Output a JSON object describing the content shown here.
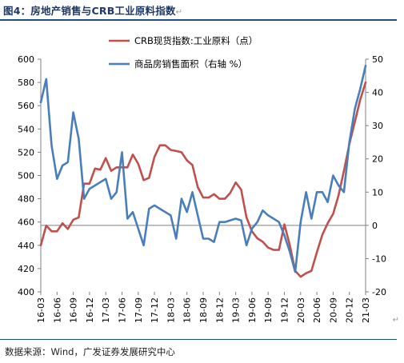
{
  "figure": {
    "title": "图4：房地产销售与CRB工业原料指数",
    "source": "数据来源：Wind，广发证券发展研究中心"
  },
  "colors": {
    "crb": "#c0504d",
    "sales": "#4a7ebb",
    "accent": "#1f4e79"
  },
  "chart_data": {
    "type": "line",
    "x": [
      "16-03",
      "16-04",
      "16-05",
      "16-06",
      "16-07",
      "16-08",
      "16-09",
      "16-10",
      "16-11",
      "16-12",
      "17-01",
      "17-02",
      "17-03",
      "17-04",
      "17-05",
      "17-06",
      "17-07",
      "17-08",
      "17-09",
      "17-10",
      "17-11",
      "17-12",
      "18-01",
      "18-02",
      "18-03",
      "18-04",
      "18-05",
      "18-06",
      "18-07",
      "18-08",
      "18-09",
      "18-10",
      "18-11",
      "18-12",
      "19-01",
      "19-02",
      "19-03",
      "19-04",
      "19-05",
      "19-06",
      "19-07",
      "19-08",
      "19-09",
      "19-10",
      "19-11",
      "19-12",
      "20-01",
      "20-02",
      "20-03",
      "20-04",
      "20-05",
      "20-06",
      "20-07",
      "20-08",
      "20-09",
      "20-10",
      "20-11",
      "20-12",
      "21-01",
      "21-02",
      "21-03"
    ],
    "x_tick_labels": [
      "16-03",
      "16-06",
      "16-09",
      "16-12",
      "17-03",
      "17-06",
      "17-09",
      "17-12",
      "18-03",
      "18-06",
      "18-09",
      "18-12",
      "19-03",
      "19-06",
      "19-09",
      "19-12",
      "20-03",
      "20-06",
      "20-09",
      "20-12",
      "21-03"
    ],
    "series": [
      {
        "name": "CRB现货指数:工业原料（点）",
        "axis": "left",
        "values": [
          440,
          457,
          452,
          452,
          459,
          454,
          462,
          464,
          493,
          493,
          506,
          505,
          515,
          504,
          507,
          507,
          507,
          518,
          510,
          496,
          498,
          516,
          526,
          526,
          522,
          521,
          520,
          513,
          509,
          490,
          481,
          481,
          484,
          480,
          480,
          485,
          494,
          488,
          464,
          452,
          446,
          443,
          438,
          436,
          436,
          458,
          440,
          418,
          413,
          416,
          418,
          434,
          449,
          459,
          467,
          483,
          504,
          527,
          546,
          565,
          580
        ]
      },
      {
        "name": "商品房销售面积（右轴 %）",
        "axis": "right",
        "values": [
          37,
          44,
          24,
          14,
          18,
          19,
          34,
          26,
          8,
          11,
          12,
          13,
          14,
          8,
          10,
          22,
          2,
          4,
          -1,
          -6,
          5,
          6,
          5,
          4,
          3,
          -4,
          8,
          4,
          10,
          3,
          -4,
          -4,
          -5,
          1,
          1,
          1.5,
          2,
          1.5,
          -6,
          -1,
          1,
          4.5,
          3,
          2,
          1,
          -3,
          -8,
          -14,
          1,
          10,
          2,
          10,
          10,
          7,
          15,
          12,
          10,
          25,
          35,
          41,
          48
        ]
      }
    ],
    "y_left": {
      "min": 400,
      "max": 600,
      "step": 20,
      "ticks": [
        "400",
        "420",
        "440",
        "460",
        "480",
        "500",
        "520",
        "540",
        "560",
        "580",
        "600"
      ]
    },
    "y_right": {
      "min": -20,
      "max": 50,
      "step": 10,
      "ticks": [
        "-20",
        "-10",
        "0",
        "10",
        "20",
        "30",
        "40",
        "50"
      ]
    },
    "grid": false,
    "legend_position": "top-center"
  }
}
